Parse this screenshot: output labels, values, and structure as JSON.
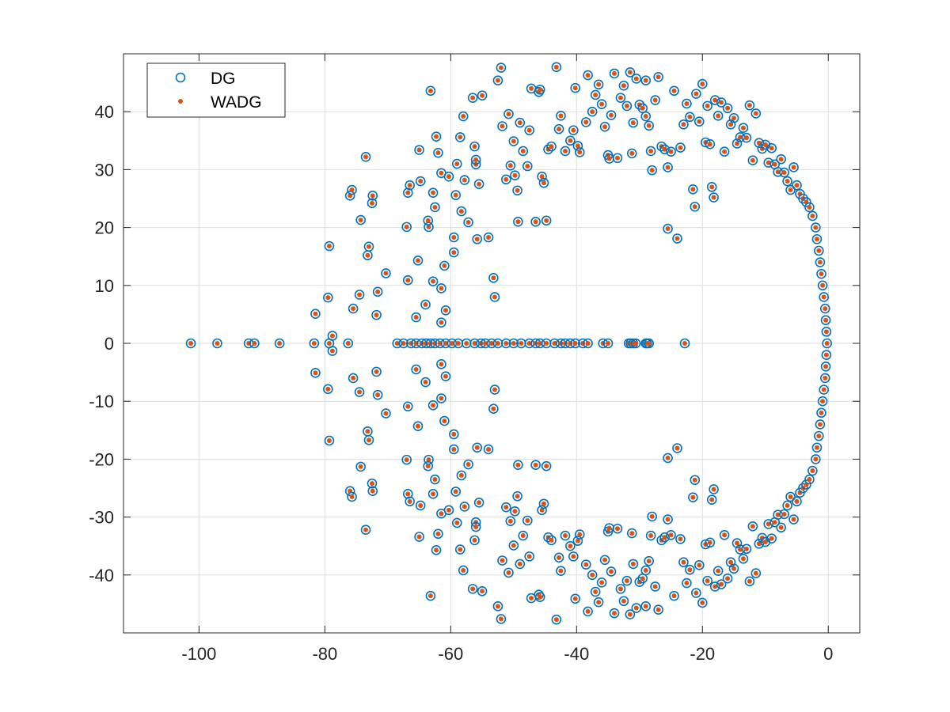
{
  "chart_data": {
    "type": "scatter",
    "title": "",
    "xlabel": "",
    "ylabel": "",
    "xlim": [
      -112,
      5
    ],
    "ylim": [
      -50,
      50
    ],
    "xticks": [
      -100,
      -80,
      -60,
      -40,
      -20,
      0
    ],
    "yticks": [
      -40,
      -30,
      -20,
      -10,
      0,
      10,
      20,
      30,
      40
    ],
    "grid": true,
    "box": true,
    "legend_position": "top-left",
    "mirror_about_real_axis": true,
    "series": [
      {
        "name": "DG",
        "marker": "circle-open",
        "color": "#0072BD"
      },
      {
        "name": "WADG",
        "marker": "dot-filled",
        "color": "#D95319"
      }
    ],
    "real_axis_points": [
      -101.3,
      -97.1,
      -92.1,
      -91.2,
      -87.2,
      -81.7,
      -79.3,
      -76.3,
      -68.5,
      -67.5,
      -66.3,
      -65.5,
      -64.6,
      -63.9,
      -63.2,
      -62.5,
      -61.7,
      -60.8,
      -59.8,
      -58.8,
      -57.5,
      -56.2,
      -55.2,
      -54.5,
      -53.5,
      -52.5,
      -51.2,
      -50.0,
      -48.8,
      -47.5,
      -46.5,
      -45.8,
      -44.8,
      -43.5,
      -42.5,
      -41.8,
      -41.0,
      -40.2,
      -39.0,
      -38.2,
      -35.8,
      -35.0,
      -31.7,
      -31.4,
      -31.0,
      -30.6,
      -29.0,
      -28.8,
      -28.5,
      -22.8,
      -0.2
    ],
    "complex_points_upper": [
      [
        -81.5,
        5.1
      ],
      [
        -79.5,
        7.9
      ],
      [
        -79.3,
        16.8
      ],
      [
        -78.8,
        1.3
      ],
      [
        -76.0,
        25.5
      ],
      [
        -75.7,
        26.5
      ],
      [
        -75.5,
        6.0
      ],
      [
        -74.5,
        8.4
      ],
      [
        -74.3,
        21.3
      ],
      [
        -73.5,
        32.2
      ],
      [
        -73.2,
        15.2
      ],
      [
        -73.0,
        16.7
      ],
      [
        -72.5,
        24.2
      ],
      [
        -72.4,
        25.5
      ],
      [
        -71.8,
        4.9
      ],
      [
        -71.6,
        8.9
      ],
      [
        -70.3,
        12.1
      ],
      [
        -67.0,
        20.1
      ],
      [
        -66.8,
        26.0
      ],
      [
        -66.5,
        27.3
      ],
      [
        -66.8,
        10.9
      ],
      [
        -65.5,
        4.5
      ],
      [
        -65.2,
        14.3
      ],
      [
        -64.8,
        28.0
      ],
      [
        -65.0,
        33.4
      ],
      [
        -64.0,
        6.7
      ],
      [
        -63.5,
        20.1
      ],
      [
        -63.6,
        21.2
      ],
      [
        -63.2,
        43.6
      ],
      [
        -62.8,
        10.7
      ],
      [
        -62.3,
        35.7
      ],
      [
        -62.0,
        32.9
      ],
      [
        -61.5,
        29.4
      ],
      [
        -62.8,
        26.0
      ],
      [
        -62.5,
        23.5
      ],
      [
        -61.5,
        9.5
      ],
      [
        -61.0,
        13.4
      ],
      [
        -61.5,
        3.6
      ],
      [
        -60.8,
        5.7
      ],
      [
        -60.3,
        28.8
      ],
      [
        -59.5,
        15.7
      ],
      [
        -59.5,
        18.3
      ],
      [
        -59.2,
        25.6
      ],
      [
        -59.0,
        31.0
      ],
      [
        -58.5,
        35.6
      ],
      [
        -58.0,
        39.2
      ],
      [
        -58.3,
        22.8
      ],
      [
        -57.8,
        28.2
      ],
      [
        -57.2,
        20.9
      ],
      [
        -56.5,
        42.4
      ],
      [
        -56.2,
        34.0
      ],
      [
        -56.0,
        30.9
      ],
      [
        -56.0,
        31.7
      ],
      [
        -55.8,
        18.0
      ],
      [
        -55.5,
        27.5
      ],
      [
        -55.0,
        42.8
      ],
      [
        -54.0,
        18.3
      ],
      [
        -53.2,
        11.3
      ],
      [
        -53.0,
        8.0
      ],
      [
        -52.5,
        45.4
      ],
      [
        -52.0,
        47.6
      ],
      [
        -51.8,
        37.5
      ],
      [
        -51.2,
        28.3
      ],
      [
        -50.8,
        39.6
      ],
      [
        -50.5,
        30.7
      ],
      [
        -50.0,
        34.9
      ],
      [
        -49.8,
        29.0
      ],
      [
        -49.4,
        26.4
      ],
      [
        -49.3,
        21.0
      ],
      [
        -49.0,
        38.1
      ],
      [
        -48.5,
        33.2
      ],
      [
        -47.8,
        30.6
      ],
      [
        -47.5,
        36.8
      ],
      [
        -47.2,
        44.0
      ],
      [
        -46.5,
        21.0
      ],
      [
        -46.0,
        43.4
      ],
      [
        -45.8,
        43.8
      ],
      [
        -45.5,
        28.8
      ],
      [
        -45.2,
        27.7
      ],
      [
        -44.8,
        21.2
      ],
      [
        -44.5,
        33.5
      ],
      [
        -44.0,
        34.0
      ],
      [
        -43.2,
        47.7
      ],
      [
        -42.8,
        37.0
      ],
      [
        -42.5,
        39.3
      ],
      [
        -41.8,
        33.2
      ],
      [
        -41.0,
        35.0
      ],
      [
        -40.5,
        36.8
      ],
      [
        -40.2,
        44.1
      ],
      [
        -39.8,
        34.1
      ],
      [
        -39.5,
        33.0
      ],
      [
        -38.5,
        38.2
      ],
      [
        -38.2,
        46.3
      ],
      [
        -37.5,
        40.0
      ],
      [
        -37.0,
        42.9
      ],
      [
        -36.5,
        44.7
      ],
      [
        -36.0,
        41.3
      ],
      [
        -35.5,
        37.4
      ],
      [
        -35.0,
        32.5
      ],
      [
        -34.8,
        31.9
      ],
      [
        -34.5,
        39.4
      ],
      [
        -34.0,
        46.6
      ],
      [
        -33.5,
        32.0
      ],
      [
        -33.0,
        42.4
      ],
      [
        -32.5,
        44.5
      ],
      [
        -32.0,
        41.0
      ],
      [
        -31.5,
        46.8
      ],
      [
        -31.2,
        32.8
      ],
      [
        -31.0,
        38.1
      ],
      [
        -30.5,
        45.7
      ],
      [
        -30.0,
        41.2
      ],
      [
        -29.5,
        40.6
      ],
      [
        -29.0,
        39.2
      ],
      [
        -29.0,
        45.4
      ],
      [
        -28.5,
        37.6
      ],
      [
        -28.2,
        33.2
      ],
      [
        -28.0,
        29.9
      ],
      [
        -27.5,
        42.0
      ],
      [
        -27.0,
        46.0
      ],
      [
        -26.5,
        34.0
      ],
      [
        -26.0,
        33.5
      ],
      [
        -25.5,
        30.4
      ],
      [
        -25.5,
        19.8
      ],
      [
        -25.0,
        33.1
      ],
      [
        -24.5,
        43.6
      ],
      [
        -24.0,
        18.1
      ],
      [
        -23.5,
        33.8
      ],
      [
        -23.0,
        37.8
      ],
      [
        -22.5,
        41.4
      ],
      [
        -22.0,
        39.1
      ],
      [
        -21.5,
        26.6
      ],
      [
        -21.2,
        23.6
      ],
      [
        -21.0,
        43.1
      ],
      [
        -20.5,
        38.3
      ],
      [
        -20.0,
        44.8
      ],
      [
        -19.5,
        34.7
      ],
      [
        -19.2,
        41.0
      ],
      [
        -18.8,
        34.4
      ],
      [
        -18.5,
        27.0
      ],
      [
        -18.2,
        25.2
      ],
      [
        -18.0,
        42.0
      ],
      [
        -17.5,
        39.3
      ],
      [
        -17.0,
        41.6
      ],
      [
        -16.5,
        33.1
      ],
      [
        -16.0,
        40.6
      ],
      [
        -15.5,
        37.8
      ],
      [
        -15.0,
        38.9
      ],
      [
        -14.5,
        34.5
      ],
      [
        -14.0,
        35.6
      ],
      [
        -13.5,
        37.2
      ],
      [
        -13.0,
        35.5
      ],
      [
        -12.5,
        41.1
      ],
      [
        -12.0,
        31.6
      ],
      [
        -11.5,
        39.7
      ],
      [
        -11.0,
        34.6
      ],
      [
        -10.5,
        33.6
      ],
      [
        -10.0,
        34.3
      ],
      [
        -9.5,
        31.2
      ],
      [
        -9.0,
        33.7
      ],
      [
        -8.5,
        30.9
      ],
      [
        -8.0,
        29.6
      ],
      [
        -7.5,
        31.8
      ],
      [
        -7.0,
        29.5
      ],
      [
        -6.5,
        28.0
      ],
      [
        -6.0,
        26.5
      ],
      [
        -5.5,
        30.4
      ],
      [
        -5.0,
        27.3
      ],
      [
        -4.5,
        25.8
      ],
      [
        -4.0,
        25.0
      ],
      [
        -3.5,
        24.4
      ],
      [
        -3.0,
        23.5
      ],
      [
        -2.5,
        22.0
      ],
      [
        -2.0,
        20.0
      ],
      [
        -1.8,
        18.0
      ],
      [
        -1.5,
        16.0
      ],
      [
        -1.3,
        14.0
      ],
      [
        -1.1,
        12.0
      ],
      [
        -0.9,
        10.0
      ],
      [
        -0.7,
        8.0
      ],
      [
        -0.5,
        6.0
      ],
      [
        -0.4,
        4.0
      ],
      [
        -0.3,
        2.0
      ]
    ]
  }
}
